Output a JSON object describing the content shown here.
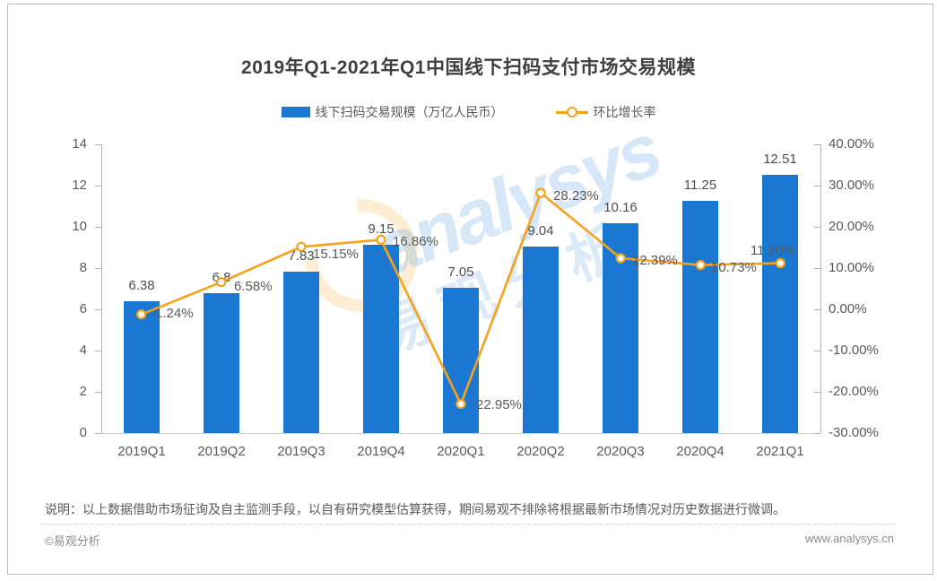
{
  "title": "2019年Q1-2021年Q1中国线下扫码支付市场交易规模",
  "legend": [
    {
      "label": "线下扫码交易规模（万亿人民币）",
      "type": "bar",
      "color": "#1b78d2"
    },
    {
      "label": "环比增长率",
      "type": "line",
      "color": "#f7a21d"
    }
  ],
  "chart_data": {
    "type": "bar+line",
    "title": "2019年Q1-2021年Q1中国线下扫码支付市场交易规模",
    "categories": [
      "2019Q1",
      "2019Q2",
      "2019Q3",
      "2019Q4",
      "2020Q1",
      "2020Q2",
      "2020Q3",
      "2020Q4",
      "2021Q1"
    ],
    "series": [
      {
        "name": "线下扫码交易规模（万亿人民币）",
        "type": "bar",
        "axis": "left",
        "color": "#1b78d2",
        "values": [
          6.38,
          6.8,
          7.83,
          9.15,
          7.05,
          9.04,
          10.16,
          11.25,
          12.51
        ],
        "labels": [
          "6.38",
          "6.8",
          "7.83",
          "9.15",
          "7.05",
          "9.04",
          "10.16",
          "11.25",
          "12.51"
        ]
      },
      {
        "name": "环比增长率",
        "type": "line",
        "axis": "right",
        "color": "#f7a21d",
        "values": [
          -1.24,
          6.58,
          15.15,
          16.86,
          -22.95,
          28.23,
          12.39,
          10.73,
          11.2
        ],
        "labels": [
          "-1.24%",
          "6.58%",
          "15.15%",
          "16.86%",
          "-22.95%",
          "28.23%",
          "12.39%",
          "10.73%",
          "11.20%"
        ]
      }
    ],
    "left_axis": {
      "min": 0,
      "max": 14,
      "step": 2,
      "ticks": [
        "14",
        "12",
        "10",
        "8",
        "6",
        "4",
        "2",
        "0"
      ]
    },
    "right_axis": {
      "min": -30,
      "max": 40,
      "step": 10,
      "ticks": [
        "40.00%",
        "30.00%",
        "20.00%",
        "10.00%",
        "0.00%",
        "-10.00%",
        "-20.00%",
        "-30.00%"
      ]
    },
    "grid": false,
    "legend_position": "top"
  },
  "watermark": {
    "logo_text": "analysys",
    "cn_text": "易观分析"
  },
  "footnote": "说明：以上数据借助市场征询及自主监测手段，以自有研究模型估算获得，期间易观不排除将根据最新市场情况对历史数据进行微调。",
  "footer": {
    "copyright": "©易观分析",
    "website": "www.analysys.cn"
  }
}
